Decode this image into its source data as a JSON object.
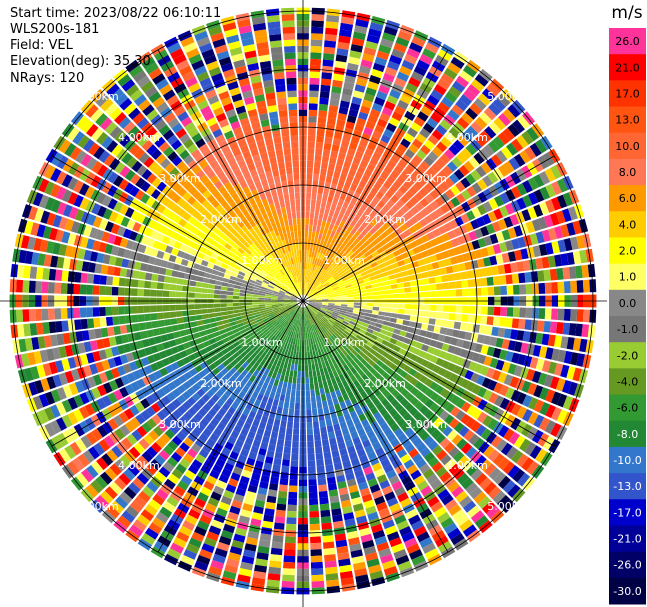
{
  "info": {
    "start_time": "Start time: 2023/08/22 06:10:11",
    "instrument": "WLS200s-181",
    "field": "Field: VEL",
    "elevation": "Elevation(deg): 35.30",
    "nrays": "NRays: 120"
  },
  "colorbar": {
    "unit": "m/s",
    "levels": [
      {
        "label": "26.0",
        "color": "#ff3399"
      },
      {
        "label": "21.0",
        "color": "#ff0000"
      },
      {
        "label": "17.0",
        "color": "#ff3300"
      },
      {
        "label": "13.0",
        "color": "#ff5511"
      },
      {
        "label": "10.0",
        "color": "#ff6633"
      },
      {
        "label": "8.0",
        "color": "#ff7755"
      },
      {
        "label": "6.0",
        "color": "#ff9900"
      },
      {
        "label": "4.0",
        "color": "#ffcc00"
      },
      {
        "label": "2.0",
        "color": "#ffff00"
      },
      {
        "label": "1.0",
        "color": "#ffff66"
      },
      {
        "label": "0.0",
        "color": "#888888"
      },
      {
        "label": "-1.0",
        "color": "#777777"
      },
      {
        "label": "-2.0",
        "color": "#99cc33"
      },
      {
        "label": "-4.0",
        "color": "#669922"
      },
      {
        "label": "-6.0",
        "color": "#339933"
      },
      {
        "label": "-8.0",
        "color": "#228833"
      },
      {
        "label": "-10.0",
        "color": "#3377cc"
      },
      {
        "label": "-13.0",
        "color": "#3355cc"
      },
      {
        "label": "-17.0",
        "color": "#0000cc"
      },
      {
        "label": "-21.0",
        "color": "#000099"
      },
      {
        "label": "-26.0",
        "color": "#000066"
      },
      {
        "label": "-30.0",
        "color": "#000044"
      }
    ]
  },
  "range_rings": [
    {
      "range_km": 1.0,
      "label": "1.00km"
    },
    {
      "range_km": 2.0,
      "label": "2.00km"
    },
    {
      "range_km": 3.0,
      "label": "3.00km"
    },
    {
      "range_km": 4.0,
      "label": "4.00km"
    },
    {
      "range_km": 5.0,
      "label": "5.00km"
    }
  ],
  "sector_directions": [
    30,
    60,
    120,
    150,
    210,
    240,
    300,
    330
  ]
}
